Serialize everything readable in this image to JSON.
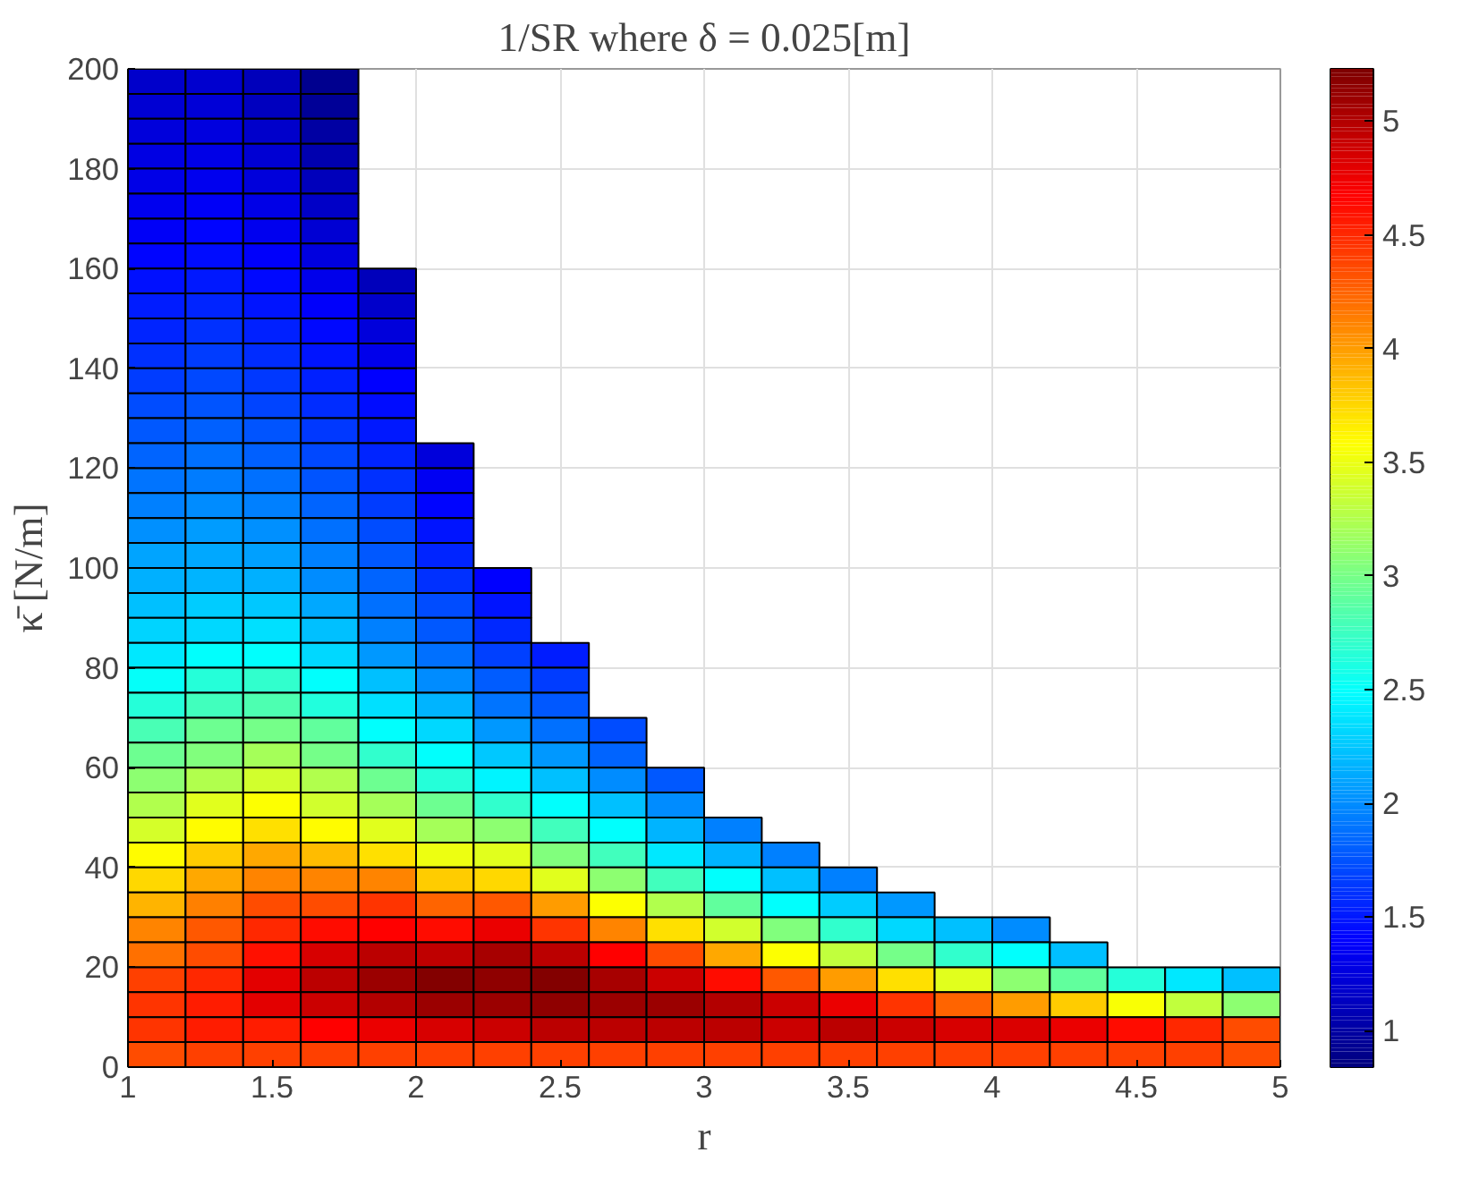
{
  "chart_data": {
    "type": "heatmap",
    "title": "1/SR where δ = 0.025[m]",
    "xlabel": "r",
    "ylabel": "κ̄ [N/m]",
    "x": [
      1.1,
      1.3,
      1.5,
      1.7,
      1.9,
      2.1,
      2.3,
      2.5,
      2.7,
      2.9,
      3.1,
      3.3,
      3.5,
      3.7,
      3.9,
      4.1,
      4.3,
      4.5,
      4.7,
      4.9
    ],
    "y": [
      197.5,
      192.5,
      187.5,
      182.5,
      177.5,
      172.5,
      167.5,
      162.5,
      157.5,
      152.5,
      147.5,
      142.5,
      137.5,
      132.5,
      127.5,
      122.5,
      117.5,
      112.5,
      107.5,
      102.5,
      97.5,
      92.5,
      87.5,
      82.5,
      77.5,
      72.5,
      67.5,
      62.5,
      57.5,
      52.5,
      47.5,
      42.5,
      37.5,
      32.5,
      27.5,
      22.5,
      17.5,
      12.5,
      7.5,
      2.5
    ],
    "xlim": [
      1,
      5
    ],
    "xticks": [
      1,
      1.5,
      2,
      2.5,
      3,
      3.5,
      4,
      4.5,
      5
    ],
    "ylim": [
      0,
      200
    ],
    "yticks": [
      0,
      20,
      40,
      60,
      80,
      100,
      120,
      140,
      160,
      180,
      200
    ],
    "clim": [
      0.84,
      5.23
    ],
    "cticks": [
      1,
      1.5,
      2,
      2.5,
      3,
      3.5,
      4,
      4.5,
      5
    ],
    "grid": true,
    "cells": [
      [
        1.18,
        1.19,
        1.1,
        0.91,
        null,
        null,
        null,
        null,
        null,
        null,
        null,
        null,
        null,
        null,
        null,
        null,
        null,
        null,
        null,
        null
      ],
      [
        1.21,
        1.22,
        1.13,
        0.96,
        null,
        null,
        null,
        null,
        null,
        null,
        null,
        null,
        null,
        null,
        null,
        null,
        null,
        null,
        null,
        null
      ],
      [
        1.24,
        1.26,
        1.17,
        1.01,
        null,
        null,
        null,
        null,
        null,
        null,
        null,
        null,
        null,
        null,
        null,
        null,
        null,
        null,
        null,
        null
      ],
      [
        1.27,
        1.29,
        1.21,
        1.06,
        null,
        null,
        null,
        null,
        null,
        null,
        null,
        null,
        null,
        null,
        null,
        null,
        null,
        null,
        null,
        null
      ],
      [
        1.3,
        1.33,
        1.25,
        1.11,
        null,
        null,
        null,
        null,
        null,
        null,
        null,
        null,
        null,
        null,
        null,
        null,
        null,
        null,
        null,
        null
      ],
      [
        1.33,
        1.37,
        1.29,
        1.16,
        null,
        null,
        null,
        null,
        null,
        null,
        null,
        null,
        null,
        null,
        null,
        null,
        null,
        null,
        null,
        null
      ],
      [
        1.37,
        1.41,
        1.33,
        1.21,
        null,
        null,
        null,
        null,
        null,
        null,
        null,
        null,
        null,
        null,
        null,
        null,
        null,
        null,
        null,
        null
      ],
      [
        1.41,
        1.45,
        1.38,
        1.26,
        null,
        null,
        null,
        null,
        null,
        null,
        null,
        null,
        null,
        null,
        null,
        null,
        null,
        null,
        null,
        null
      ],
      [
        1.46,
        1.5,
        1.43,
        1.32,
        1.1,
        null,
        null,
        null,
        null,
        null,
        null,
        null,
        null,
        null,
        null,
        null,
        null,
        null,
        null,
        null
      ],
      [
        1.51,
        1.55,
        1.48,
        1.38,
        1.18,
        null,
        null,
        null,
        null,
        null,
        null,
        null,
        null,
        null,
        null,
        null,
        null,
        null,
        null,
        null
      ],
      [
        1.56,
        1.6,
        1.53,
        1.43,
        1.25,
        null,
        null,
        null,
        null,
        null,
        null,
        null,
        null,
        null,
        null,
        null,
        null,
        null,
        null,
        null
      ],
      [
        1.61,
        1.65,
        1.58,
        1.48,
        1.32,
        null,
        null,
        null,
        null,
        null,
        null,
        null,
        null,
        null,
        null,
        null,
        null,
        null,
        null,
        null
      ],
      [
        1.66,
        1.7,
        1.63,
        1.53,
        1.39,
        null,
        null,
        null,
        null,
        null,
        null,
        null,
        null,
        null,
        null,
        null,
        null,
        null,
        null,
        null
      ],
      [
        1.72,
        1.76,
        1.69,
        1.58,
        1.45,
        null,
        null,
        null,
        null,
        null,
        null,
        null,
        null,
        null,
        null,
        null,
        null,
        null,
        null,
        null
      ],
      [
        1.77,
        1.81,
        1.75,
        1.64,
        1.5,
        null,
        null,
        null,
        null,
        null,
        null,
        null,
        null,
        null,
        null,
        null,
        null,
        null,
        null,
        null
      ],
      [
        1.83,
        1.87,
        1.81,
        1.7,
        1.55,
        1.25,
        null,
        null,
        null,
        null,
        null,
        null,
        null,
        null,
        null,
        null,
        null,
        null,
        null,
        null
      ],
      [
        1.89,
        1.93,
        1.87,
        1.76,
        1.6,
        1.35,
        null,
        null,
        null,
        null,
        null,
        null,
        null,
        null,
        null,
        null,
        null,
        null,
        null,
        null
      ],
      [
        1.95,
        1.99,
        1.94,
        1.82,
        1.66,
        1.42,
        null,
        null,
        null,
        null,
        null,
        null,
        null,
        null,
        null,
        null,
        null,
        null,
        null,
        null
      ],
      [
        2.02,
        2.06,
        2.01,
        1.88,
        1.72,
        1.48,
        null,
        null,
        null,
        null,
        null,
        null,
        null,
        null,
        null,
        null,
        null,
        null,
        null,
        null
      ],
      [
        2.1,
        2.12,
        2.08,
        1.94,
        1.77,
        1.55,
        null,
        null,
        null,
        null,
        null,
        null,
        null,
        null,
        null,
        null,
        null,
        null,
        null,
        null
      ],
      [
        2.16,
        2.17,
        2.15,
        2.0,
        1.83,
        1.6,
        1.39,
        null,
        null,
        null,
        null,
        null,
        null,
        null,
        null,
        null,
        null,
        null,
        null,
        null
      ],
      [
        2.22,
        2.27,
        2.25,
        2.12,
        1.88,
        1.72,
        1.48,
        null,
        null,
        null,
        null,
        null,
        null,
        null,
        null,
        null,
        null,
        null,
        null,
        null
      ],
      [
        2.3,
        2.33,
        2.35,
        2.22,
        1.94,
        1.77,
        1.57,
        null,
        null,
        null,
        null,
        null,
        null,
        null,
        null,
        null,
        null,
        null,
        null,
        null
      ],
      [
        2.4,
        2.5,
        2.5,
        2.33,
        2.05,
        1.88,
        1.68,
        1.52,
        null,
        null,
        null,
        null,
        null,
        null,
        null,
        null,
        null,
        null,
        null,
        null
      ],
      [
        2.52,
        2.65,
        2.7,
        2.5,
        2.22,
        2.0,
        1.8,
        1.66,
        null,
        null,
        null,
        null,
        null,
        null,
        null,
        null,
        null,
        null,
        null,
        null
      ],
      [
        2.65,
        2.77,
        2.82,
        2.63,
        2.35,
        2.17,
        1.9,
        1.77,
        null,
        null,
        null,
        null,
        null,
        null,
        null,
        null,
        null,
        null,
        null,
        null
      ],
      [
        2.8,
        2.95,
        3.0,
        2.9,
        2.5,
        2.33,
        2.05,
        1.88,
        1.72,
        null,
        null,
        null,
        null,
        null,
        null,
        null,
        null,
        null,
        null,
        null
      ],
      [
        2.95,
        3.05,
        3.2,
        3.0,
        2.7,
        2.5,
        2.25,
        2.05,
        1.83,
        null,
        null,
        null,
        null,
        null,
        null,
        null,
        null,
        null,
        null,
        null
      ],
      [
        3.1,
        3.25,
        3.38,
        3.25,
        2.95,
        2.65,
        2.45,
        2.22,
        2.0,
        1.77,
        null,
        null,
        null,
        null,
        null,
        null,
        null,
        null,
        null,
        null
      ],
      [
        3.25,
        3.45,
        3.58,
        3.38,
        3.2,
        2.95,
        2.7,
        2.5,
        2.22,
        2.0,
        null,
        null,
        null,
        null,
        null,
        null,
        null,
        null,
        null,
        null
      ],
      [
        3.4,
        3.6,
        3.72,
        3.6,
        3.45,
        3.2,
        3.1,
        2.77,
        2.5,
        2.17,
        1.94,
        null,
        null,
        null,
        null,
        null,
        null,
        null,
        null,
        null
      ],
      [
        3.6,
        3.8,
        3.95,
        3.86,
        3.72,
        3.5,
        3.45,
        3.05,
        2.77,
        2.4,
        2.17,
        1.94,
        null,
        null,
        null,
        null,
        null,
        null,
        null,
        null
      ],
      [
        3.75,
        3.95,
        4.1,
        4.1,
        4.1,
        3.8,
        3.75,
        3.45,
        3.1,
        2.77,
        2.5,
        2.22,
        1.94,
        null,
        null,
        null,
        null,
        null,
        null,
        null
      ],
      [
        3.9,
        4.13,
        4.35,
        4.35,
        4.45,
        4.25,
        4.3,
        4.0,
        3.58,
        3.25,
        2.9,
        2.5,
        2.27,
        2.05,
        null,
        null,
        null,
        null,
        null,
        null
      ],
      [
        4.1,
        4.3,
        4.5,
        4.62,
        4.68,
        4.62,
        4.75,
        4.45,
        4.1,
        3.72,
        3.38,
        3.05,
        2.7,
        2.33,
        2.22,
        2.0,
        null,
        null,
        null,
        null
      ],
      [
        4.2,
        4.35,
        4.6,
        4.85,
        4.96,
        4.95,
        5.05,
        4.96,
        4.68,
        4.35,
        3.95,
        3.58,
        3.31,
        3.0,
        2.7,
        2.5,
        2.22,
        null,
        null,
        null
      ],
      [
        4.4,
        4.5,
        4.8,
        4.96,
        5.1,
        5.2,
        5.15,
        5.2,
        5.05,
        4.9,
        4.62,
        4.3,
        4.0,
        3.72,
        3.45,
        3.1,
        2.9,
        2.65,
        2.4,
        2.22
      ],
      [
        4.45,
        4.55,
        4.8,
        4.9,
        5.0,
        5.1,
        5.1,
        5.15,
        5.1,
        5.1,
        5.0,
        4.9,
        4.75,
        4.45,
        4.25,
        4.0,
        3.8,
        3.55,
        3.31,
        3.1
      ],
      [
        4.45,
        4.55,
        4.55,
        4.68,
        4.75,
        4.85,
        4.9,
        4.96,
        4.96,
        4.96,
        4.96,
        4.9,
        4.96,
        4.9,
        4.85,
        4.82,
        4.75,
        4.62,
        4.5,
        4.35
      ],
      [
        4.35,
        4.4,
        4.4,
        4.4,
        4.4,
        4.4,
        4.4,
        4.4,
        4.4,
        4.4,
        4.4,
        4.4,
        4.4,
        4.4,
        4.4,
        4.4,
        4.4,
        4.4,
        4.4,
        4.35
      ]
    ]
  }
}
